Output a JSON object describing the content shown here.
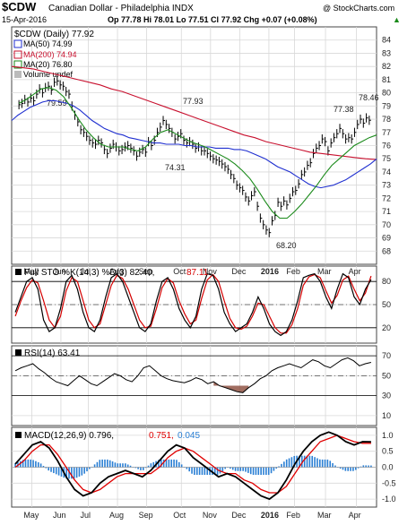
{
  "header": {
    "symbol": "$CDW",
    "name": "Canadian Dollar - Philadelphia INDX",
    "copyright": "@ StockCharts.com",
    "date": "15-Apr-2016",
    "quote": "Op 77.78  Hi 78.01  Lo 77.51  Cl 77.92  Chg +0.07 (+0.08%)",
    "change_arrow": "▲"
  },
  "legend": {
    "main": "$CDW (Daily) 77.92",
    "ma50": "MA(50) 74.99",
    "ma200": "MA(200) 74.94",
    "ma20": "MA(20) 76.80",
    "volume": "Volume undef"
  },
  "annotations": [
    "79.59",
    "77.93",
    "74.31",
    "68.20",
    "77.38",
    "78.46"
  ],
  "indicators": {
    "sto": "Full STO %K(14,3) %D(3) 82.40, 87.11",
    "sto_k": "Full STO %K(14,3) %D(3) 82.40,",
    "sto_d": "87.11",
    "rsi": "RSI(14) 63.41",
    "macd_label": "MACD(12,26,9) 0.796,",
    "macd_signal": "0.751,",
    "macd_hist": "0.045"
  },
  "colors": {
    "price_bars": "#000000",
    "ma50": "#1f2fd0",
    "ma200": "#c8102e",
    "ma20": "#1a8a1a",
    "sto_d": "#d40000",
    "rsi_shade": "#8a4a3a",
    "macd_signal": "#e00000",
    "macd_hist": "#2a7fd4",
    "grid": "#d8d8d8"
  },
  "chart_data": [
    {
      "type": "line",
      "title": "$CDW Canadian Dollar - Philadelphia INDX",
      "ylim": [
        67,
        85
      ],
      "yticks": [
        68,
        69,
        70,
        71,
        72,
        73,
        74,
        75,
        76,
        77,
        78,
        79,
        80,
        81,
        82,
        83,
        84
      ],
      "x_labels": [
        "May",
        "Jun",
        "Jul",
        "Aug",
        "Sep",
        "Oct",
        "Nov",
        "Dec",
        "2016",
        "Feb",
        "Mar",
        "Apr"
      ],
      "grid": true,
      "series": [
        {
          "name": "$CDW",
          "values": [
            79.1,
            79.2,
            79.5,
            79.3,
            79.6,
            79.4,
            79.9,
            80.3,
            80.0,
            80.4,
            80.5,
            80.2,
            80.8,
            80.9,
            80.6,
            80.5,
            80.1,
            79.9,
            79.0,
            78.3,
            77.8,
            77.2,
            77.0,
            76.7,
            76.4,
            76.2,
            76.1,
            76.4,
            76.2,
            75.7,
            75.4,
            75.8,
            76.1,
            75.9,
            75.6,
            75.7,
            75.9,
            76.0,
            75.8,
            75.6,
            75.2,
            75.5,
            75.7,
            75.5,
            76.3,
            76.0,
            76.4,
            77.0,
            77.4,
            77.9,
            77.6,
            77.3,
            77.0,
            76.5,
            76.7,
            76.9,
            76.4,
            76.2,
            76.3,
            76.1,
            75.8,
            75.9,
            75.6,
            75.6,
            75.4,
            75.2,
            75.0,
            74.9,
            74.8,
            74.6,
            74.4,
            74.2,
            73.8,
            73.5,
            73.0,
            72.8,
            72.6,
            72.1,
            71.8,
            72.2,
            72.5,
            71.4,
            70.5,
            70.0,
            69.6,
            69.4,
            70.3,
            70.7,
            71.7,
            71.4,
            71.8,
            71.5,
            72.0,
            72.5,
            72.6,
            73.1,
            73.8,
            74.0,
            74.5,
            74.7,
            75.4,
            75.8,
            76.0,
            76.5,
            76.3,
            75.6,
            76.2,
            76.6,
            76.9,
            77.3,
            76.9,
            76.5,
            76.6,
            76.5,
            77.0,
            77.6,
            78.0,
            77.7,
            78.1,
            77.92
          ]
        },
        {
          "name": "MA(50)",
          "values": [
            77.9,
            78.3,
            78.6,
            78.9,
            79.1,
            79.3,
            79.4,
            79.4,
            79.3,
            79.2,
            79.0,
            78.7,
            78.3,
            77.9,
            77.6,
            77.3,
            77.1,
            76.9,
            76.8,
            76.6,
            76.5,
            76.4,
            76.3,
            76.2,
            76.2,
            76.1,
            76.1,
            76.1,
            76.0,
            76.0,
            75.9,
            75.9,
            75.9,
            75.8,
            75.8,
            75.8,
            75.7,
            75.7,
            75.6,
            75.4,
            75.2,
            75.0,
            74.7,
            74.4,
            74.2,
            74.0,
            73.7,
            73.4,
            73.1,
            72.9,
            72.8,
            72.9,
            73.0,
            73.2,
            73.4,
            73.7,
            74.0,
            74.3,
            74.6,
            74.99
          ]
        },
        {
          "name": "MA(200)",
          "values": [
            82.0,
            81.9,
            81.8,
            81.6,
            81.4,
            81.2,
            81.0,
            80.8,
            80.6,
            80.3,
            80.1,
            79.8,
            79.5,
            79.2,
            78.9,
            78.6,
            78.3,
            78.0,
            77.7,
            77.4,
            77.1,
            76.8,
            76.6,
            76.3,
            76.1,
            75.9,
            75.7,
            75.5,
            75.4,
            75.3,
            75.2,
            75.1,
            75.0,
            74.94
          ]
        },
        {
          "name": "MA(20)",
          "values": [
            79.2,
            79.5,
            79.9,
            80.3,
            80.4,
            80.2,
            79.7,
            78.9,
            78.0,
            77.2,
            76.6,
            76.1,
            75.9,
            75.9,
            75.9,
            75.7,
            75.6,
            75.9,
            76.5,
            77.0,
            77.2,
            76.9,
            76.6,
            76.3,
            76.1,
            75.9,
            75.6,
            75.3,
            75.0,
            74.6,
            74.1,
            73.5,
            72.7,
            71.8,
            71.0,
            70.5,
            70.5,
            71.0,
            71.6,
            72.3,
            73.0,
            73.8,
            74.5,
            75.0,
            75.5,
            76.0,
            76.3,
            76.6,
            76.8
          ]
        }
      ]
    },
    {
      "type": "line",
      "title": "Full STO %K(14,3) %D(3)",
      "ylim": [
        0,
        100
      ],
      "yticks": [
        20,
        50,
        80
      ],
      "series": [
        {
          "name": "%K",
          "values": [
            40,
            60,
            80,
            85,
            70,
            30,
            15,
            20,
            45,
            80,
            88,
            70,
            40,
            20,
            15,
            30,
            60,
            85,
            90,
            80,
            60,
            40,
            20,
            15,
            25,
            55,
            80,
            85,
            70,
            45,
            30,
            20,
            35,
            70,
            90,
            88,
            70,
            40,
            25,
            15,
            20,
            25,
            40,
            60,
            45,
            25,
            15,
            10,
            15,
            30,
            55,
            85,
            88,
            90,
            80,
            60,
            45,
            70,
            90,
            85,
            60,
            50,
            70,
            82.4
          ]
        },
        {
          "name": "%D",
          "values": [
            35,
            55,
            72,
            82,
            78,
            55,
            30,
            20,
            35,
            68,
            85,
            80,
            55,
            30,
            20,
            25,
            50,
            75,
            88,
            84,
            70,
            50,
            30,
            20,
            22,
            45,
            72,
            84,
            78,
            55,
            38,
            25,
            30,
            58,
            82,
            89,
            80,
            55,
            32,
            20,
            18,
            22,
            35,
            52,
            50,
            35,
            20,
            13,
            13,
            24,
            45,
            75,
            86,
            89,
            85,
            68,
            52,
            62,
            82,
            87,
            70,
            55,
            65,
            87.11
          ]
        }
      ]
    },
    {
      "type": "line",
      "title": "RSI(14)",
      "ylim": [
        0,
        80
      ],
      "yticks": [
        10,
        30,
        50,
        70
      ],
      "series": [
        {
          "name": "RSI(14)",
          "values": [
            55,
            58,
            60,
            62,
            57,
            53,
            48,
            44,
            42,
            40,
            45,
            50,
            46,
            42,
            40,
            44,
            48,
            52,
            50,
            46,
            44,
            50,
            58,
            60,
            55,
            50,
            47,
            45,
            44,
            43,
            45,
            48,
            46,
            42,
            44,
            40,
            38,
            36,
            34,
            33,
            38,
            42,
            47,
            50,
            55,
            58,
            60,
            62,
            60,
            58,
            62,
            66,
            64,
            60,
            58,
            62,
            66,
            68,
            65,
            60,
            62,
            63.41
          ]
        }
      ]
    },
    {
      "type": "line",
      "title": "MACD(12,26,9)",
      "ylim": [
        -1.25,
        1.25
      ],
      "yticks": [
        -1.0,
        -0.5,
        0.0,
        0.5,
        1.0
      ],
      "series": [
        {
          "name": "MACD",
          "values": [
            0.1,
            0.4,
            0.7,
            0.8,
            0.6,
            0.2,
            -0.3,
            -0.7,
            -0.9,
            -0.8,
            -0.5,
            -0.3,
            -0.2,
            -0.1,
            -0.2,
            -0.3,
            -0.1,
            0.2,
            0.5,
            0.7,
            0.6,
            0.3,
            0.1,
            -0.1,
            -0.3,
            -0.2,
            -0.3,
            -0.5,
            -0.7,
            -0.9,
            -1.0,
            -0.8,
            -0.4,
            0.1,
            0.5,
            0.8,
            1.0,
            1.1,
            1.0,
            0.8,
            0.7,
            0.8,
            0.796
          ]
        },
        {
          "name": "Signal",
          "values": [
            0.0,
            0.2,
            0.5,
            0.7,
            0.7,
            0.4,
            0.0,
            -0.4,
            -0.7,
            -0.8,
            -0.7,
            -0.5,
            -0.3,
            -0.2,
            -0.2,
            -0.2,
            -0.2,
            0.0,
            0.3,
            0.5,
            0.6,
            0.5,
            0.3,
            0.1,
            -0.1,
            -0.2,
            -0.2,
            -0.4,
            -0.5,
            -0.7,
            -0.8,
            -0.8,
            -0.6,
            -0.2,
            0.2,
            0.5,
            0.8,
            0.9,
            1.0,
            0.9,
            0.8,
            0.75,
            0.751
          ]
        }
      ]
    }
  ]
}
